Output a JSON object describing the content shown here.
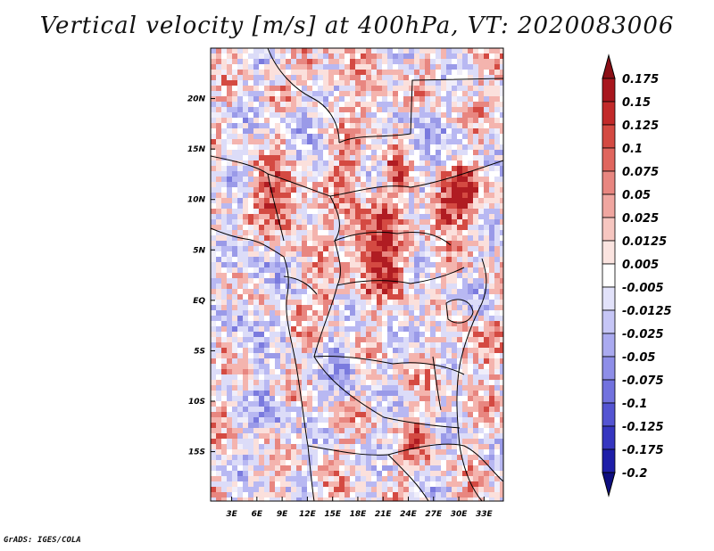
{
  "title": "Vertical velocity [m/s] at 400hPa, VT: 2020083006",
  "credit": "GrADS: IGES/COLA",
  "map": {
    "lon_labels": [
      "3E",
      "6E",
      "9E",
      "12E",
      "15E",
      "18E",
      "21E",
      "24E",
      "27E",
      "30E",
      "33E"
    ],
    "lon_values": [
      3,
      6,
      9,
      12,
      15,
      18,
      21,
      24,
      27,
      30,
      33
    ],
    "lat_labels": [
      "20N",
      "15N",
      "10N",
      "5N",
      "EQ",
      "5S",
      "10S",
      "15S"
    ],
    "lat_values": [
      20,
      15,
      10,
      5,
      0,
      -5,
      -10,
      -15
    ],
    "lon_range": [
      0.5,
      35.3
    ],
    "lat_range": [
      -19.9,
      25
    ]
  },
  "colorbar": {
    "labels": [
      "0.175",
      "0.15",
      "0.125",
      "0.1",
      "0.075",
      "0.05",
      "0.025",
      "0.0125",
      "0.005",
      "-0.005",
      "-0.0125",
      "-0.025",
      "-0.05",
      "-0.075",
      "-0.1",
      "-0.125",
      "-0.175",
      "-0.2"
    ],
    "colors": [
      "#8b0f16",
      "#a8171e",
      "#c22a2a",
      "#d44a42",
      "#e0665e",
      "#e88680",
      "#f0a6a0",
      "#f6c6c0",
      "#fbe4e0",
      "#ffffff",
      "#e2e2fa",
      "#c6c6f6",
      "#aaaaf0",
      "#8e8ee8",
      "#7272de",
      "#5454d2",
      "#3636c0",
      "#1e1ea8",
      "#0e0e80"
    ]
  }
}
